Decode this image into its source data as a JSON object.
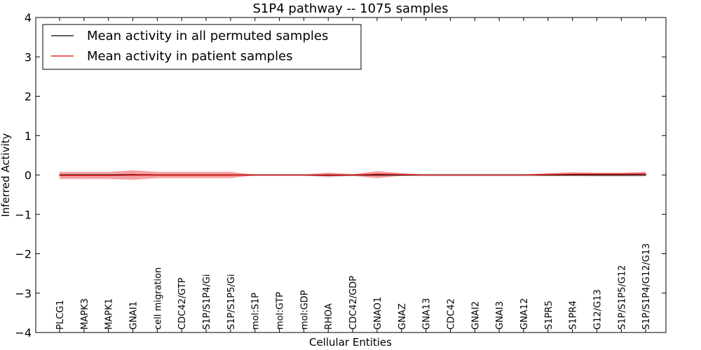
{
  "chart_data": {
    "type": "line",
    "title": "S1P4 pathway -- 1075 samples",
    "xlabel": "Cellular Entities",
    "ylabel": "Inferred Activity",
    "ylim": [
      -4,
      4
    ],
    "yticks": [
      -4,
      -3,
      -2,
      -1,
      0,
      1,
      2,
      3,
      4
    ],
    "ytick_labels": [
      "−4",
      "−3",
      "−2",
      "−1",
      "0",
      "1",
      "2",
      "3",
      "4"
    ],
    "grid": false,
    "legend_position": "top-left",
    "categories": [
      "PLCG1",
      "MAPK3",
      "MAPK1",
      "GNAI1",
      "cell migration",
      "CDC42/GTP",
      "S1P/S1P4/Gi",
      "S1P/S1P5/Gi",
      "mol:S1P",
      "mol:GTP",
      "mol:GDP",
      "RHOA",
      "CDC42/GDP",
      "GNAO1",
      "GNAZ",
      "GNA13",
      "CDC42",
      "GNAI2",
      "GNAI3",
      "GNA12",
      "S1PR5",
      "S1PR4",
      "G12/G13",
      "S1P/S1P5/G12",
      "S1P/S1P4/G12/G13"
    ],
    "series": [
      {
        "name": "Mean activity in all permuted samples",
        "color": "#000000",
        "values": [
          0.0,
          0.0,
          0.0,
          0.01,
          0.0,
          0.0,
          0.0,
          0.0,
          0.0,
          0.0,
          0.0,
          -0.01,
          0.0,
          0.0,
          0.0,
          0.0,
          0.0,
          0.0,
          0.0,
          0.0,
          0.0,
          0.0,
          0.0,
          0.0,
          0.0
        ],
        "band_lower": [
          -0.03,
          -0.03,
          -0.03,
          -0.04,
          -0.03,
          -0.03,
          -0.03,
          -0.03,
          -0.03,
          -0.03,
          -0.03,
          -0.06,
          -0.03,
          -0.04,
          -0.03,
          -0.04,
          -0.04,
          -0.04,
          -0.04,
          -0.04,
          -0.04,
          -0.04,
          -0.05,
          -0.05,
          -0.05
        ],
        "band_upper": [
          0.03,
          0.03,
          0.03,
          0.04,
          0.03,
          0.03,
          0.03,
          0.03,
          0.03,
          0.03,
          0.03,
          0.04,
          0.03,
          0.04,
          0.03,
          0.04,
          0.04,
          0.04,
          0.04,
          0.04,
          0.04,
          0.04,
          0.05,
          0.05,
          0.05
        ],
        "band_color": "#bbbbbb"
      },
      {
        "name": "Mean activity in patient samples",
        "color": "#dd0000",
        "values": [
          -0.01,
          -0.01,
          -0.01,
          0.0,
          0.0,
          0.0,
          0.0,
          0.0,
          0.0,
          0.0,
          0.0,
          0.0,
          0.0,
          0.02,
          0.01,
          0.0,
          0.0,
          0.0,
          0.0,
          0.0,
          0.01,
          0.02,
          0.02,
          0.02,
          0.03
        ],
        "band_lower": [
          -0.1,
          -0.1,
          -0.1,
          -0.12,
          -0.08,
          -0.08,
          -0.08,
          -0.08,
          -0.01,
          -0.01,
          -0.01,
          -0.04,
          -0.02,
          -0.08,
          -0.02,
          -0.01,
          -0.01,
          -0.01,
          -0.01,
          -0.01,
          -0.02,
          -0.02,
          -0.02,
          -0.02,
          -0.02
        ],
        "band_upper": [
          0.08,
          0.08,
          0.08,
          0.12,
          0.08,
          0.08,
          0.08,
          0.08,
          0.01,
          0.01,
          0.01,
          0.06,
          0.02,
          0.1,
          0.05,
          0.01,
          0.01,
          0.01,
          0.01,
          0.01,
          0.05,
          0.07,
          0.06,
          0.06,
          0.08
        ],
        "band_color": "#ee4444"
      }
    ]
  }
}
